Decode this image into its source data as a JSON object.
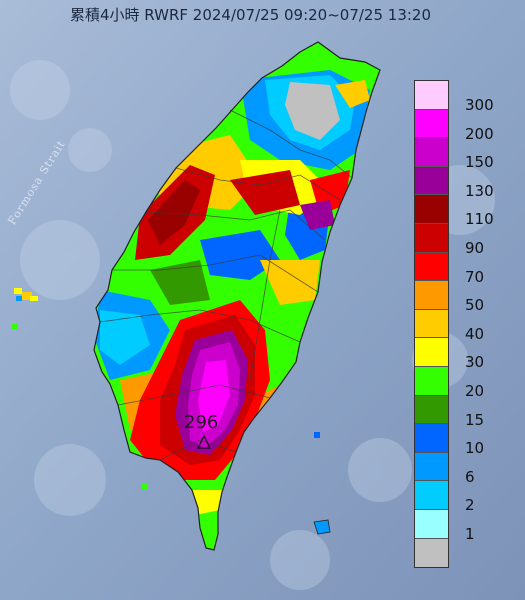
{
  "title": "累積4小時 RWRF 2024/07/25 09:20~07/25 13:20",
  "strait_label": "Formosa Strait",
  "peak_value": "296",
  "legend": {
    "items": [
      {
        "label": "300",
        "color": "#ffccff"
      },
      {
        "label": "200",
        "color": "#ff00ff"
      },
      {
        "label": "150",
        "color": "#cc00cc"
      },
      {
        "label": "130",
        "color": "#990099"
      },
      {
        "label": "110",
        "color": "#990000"
      },
      {
        "label": "90",
        "color": "#cc0000"
      },
      {
        "label": "70",
        "color": "#ff0000"
      },
      {
        "label": "50",
        "color": "#ff9900"
      },
      {
        "label": "40",
        "color": "#ffcc00"
      },
      {
        "label": "30",
        "color": "#ffff00"
      },
      {
        "label": "20",
        "color": "#33ff00"
      },
      {
        "label": "15",
        "color": "#339900"
      },
      {
        "label": "10",
        "color": "#0066ff"
      },
      {
        "label": "6",
        "color": "#0099ff"
      },
      {
        "label": "2",
        "color": "#00ccff"
      },
      {
        "label": "1",
        "color": "#99ffff"
      },
      {
        "label": "",
        "color": "#c0c0c0"
      }
    ]
  },
  "colors": {
    "ocean": "#8fa3c4",
    "ocean_light": "#b4c4dc",
    "no_rain": "#c0c0c0"
  }
}
